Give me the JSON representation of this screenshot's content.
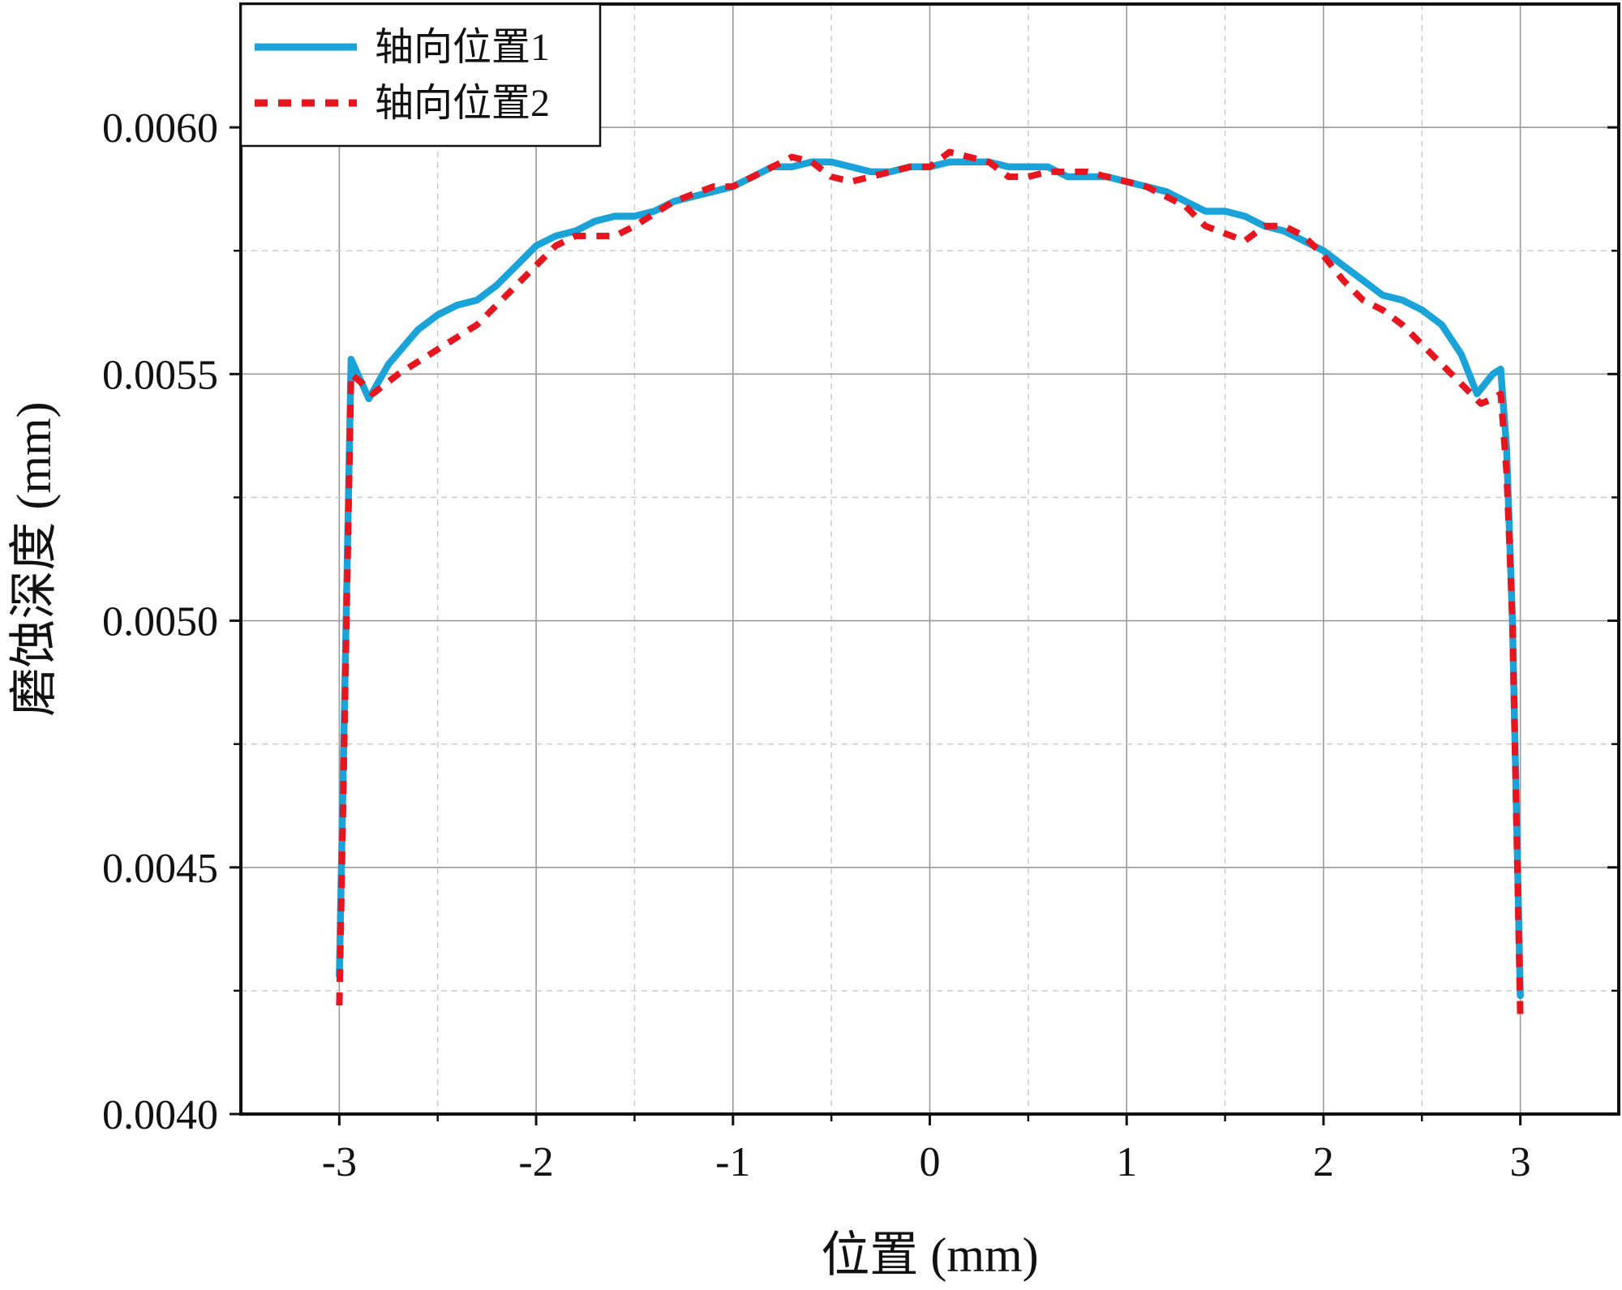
{
  "chart_data": {
    "type": "line",
    "title": "",
    "xlabel": "位置 (mm)",
    "ylabel": "磨蚀深度 (mm)",
    "xlim": [
      -3.5,
      3.5
    ],
    "ylim": [
      0.004,
      0.00625
    ],
    "x_ticks": [
      -3,
      -2,
      -1,
      0,
      1,
      2,
      3
    ],
    "x_tick_labels": [
      "-3",
      "-2",
      "-1",
      "0",
      "1",
      "2",
      "3"
    ],
    "y_ticks": [
      0.004,
      0.0045,
      0.005,
      0.0055,
      0.006
    ],
    "y_tick_labels": [
      "0.0040",
      "0.0045",
      "0.0050",
      "0.0055",
      "0.0060"
    ],
    "grid": {
      "major": true,
      "minor": true
    },
    "legend_position": "top-left",
    "series": [
      {
        "name": "轴向位置1",
        "color": "#1aa3d9",
        "style": "solid",
        "points": [
          [
            -3.0,
            0.00428
          ],
          [
            -2.94,
            0.00553
          ],
          [
            -2.85,
            0.00545
          ],
          [
            -2.75,
            0.00552
          ],
          [
            -2.6,
            0.00559
          ],
          [
            -2.5,
            0.00562
          ],
          [
            -2.4,
            0.00564
          ],
          [
            -2.3,
            0.00565
          ],
          [
            -2.2,
            0.00568
          ],
          [
            -2.1,
            0.00572
          ],
          [
            -2.0,
            0.00576
          ],
          [
            -1.9,
            0.00578
          ],
          [
            -1.8,
            0.00579
          ],
          [
            -1.7,
            0.00581
          ],
          [
            -1.6,
            0.00582
          ],
          [
            -1.5,
            0.00582
          ],
          [
            -1.4,
            0.00583
          ],
          [
            -1.3,
            0.00585
          ],
          [
            -1.2,
            0.00586
          ],
          [
            -1.1,
            0.00587
          ],
          [
            -1.0,
            0.00588
          ],
          [
            -0.9,
            0.0059
          ],
          [
            -0.8,
            0.00592
          ],
          [
            -0.7,
            0.00592
          ],
          [
            -0.6,
            0.00593
          ],
          [
            -0.5,
            0.00593
          ],
          [
            -0.4,
            0.00592
          ],
          [
            -0.3,
            0.00591
          ],
          [
            -0.2,
            0.00591
          ],
          [
            -0.1,
            0.00592
          ],
          [
            0.0,
            0.00592
          ],
          [
            0.1,
            0.00593
          ],
          [
            0.2,
            0.00593
          ],
          [
            0.3,
            0.00593
          ],
          [
            0.4,
            0.00592
          ],
          [
            0.5,
            0.00592
          ],
          [
            0.6,
            0.00592
          ],
          [
            0.7,
            0.0059
          ],
          [
            0.8,
            0.0059
          ],
          [
            0.9,
            0.0059
          ],
          [
            1.0,
            0.00589
          ],
          [
            1.1,
            0.00588
          ],
          [
            1.2,
            0.00587
          ],
          [
            1.3,
            0.00585
          ],
          [
            1.4,
            0.00583
          ],
          [
            1.5,
            0.00583
          ],
          [
            1.6,
            0.00582
          ],
          [
            1.7,
            0.0058
          ],
          [
            1.8,
            0.00579
          ],
          [
            1.9,
            0.00577
          ],
          [
            2.0,
            0.00575
          ],
          [
            2.1,
            0.00572
          ],
          [
            2.2,
            0.00569
          ],
          [
            2.3,
            0.00566
          ],
          [
            2.4,
            0.00565
          ],
          [
            2.5,
            0.00563
          ],
          [
            2.6,
            0.0056
          ],
          [
            2.7,
            0.00554
          ],
          [
            2.78,
            0.00546
          ],
          [
            2.86,
            0.0055
          ],
          [
            2.9,
            0.00551
          ],
          [
            2.93,
            0.00535
          ],
          [
            2.96,
            0.005
          ],
          [
            3.0,
            0.00424
          ]
        ]
      },
      {
        "name": "轴向位置2",
        "color": "#e8141e",
        "style": "dashed",
        "points": [
          [
            -3.0,
            0.00422
          ],
          [
            -2.94,
            0.0055
          ],
          [
            -2.88,
            0.00548
          ],
          [
            -2.83,
            0.00546
          ],
          [
            -2.7,
            0.0055
          ],
          [
            -2.5,
            0.00555
          ],
          [
            -2.3,
            0.0056
          ],
          [
            -2.1,
            0.00568
          ],
          [
            -1.9,
            0.00576
          ],
          [
            -1.8,
            0.00578
          ],
          [
            -1.6,
            0.00578
          ],
          [
            -1.5,
            0.0058
          ],
          [
            -1.3,
            0.00585
          ],
          [
            -1.1,
            0.00588
          ],
          [
            -1.0,
            0.00588
          ],
          [
            -0.9,
            0.0059
          ],
          [
            -0.8,
            0.00592
          ],
          [
            -0.7,
            0.00594
          ],
          [
            -0.6,
            0.00593
          ],
          [
            -0.5,
            0.0059
          ],
          [
            -0.4,
            0.00589
          ],
          [
            -0.3,
            0.0059
          ],
          [
            -0.2,
            0.00591
          ],
          [
            -0.1,
            0.00592
          ],
          [
            0.0,
            0.00592
          ],
          [
            0.1,
            0.00595
          ],
          [
            0.2,
            0.00594
          ],
          [
            0.3,
            0.00593
          ],
          [
            0.4,
            0.0059
          ],
          [
            0.5,
            0.0059
          ],
          [
            0.6,
            0.00591
          ],
          [
            0.7,
            0.00591
          ],
          [
            0.8,
            0.00591
          ],
          [
            0.9,
            0.0059
          ],
          [
            1.0,
            0.00589
          ],
          [
            1.1,
            0.00588
          ],
          [
            1.2,
            0.00586
          ],
          [
            1.3,
            0.00584
          ],
          [
            1.4,
            0.0058
          ],
          [
            1.6,
            0.00577
          ],
          [
            1.7,
            0.0058
          ],
          [
            1.8,
            0.0058
          ],
          [
            1.9,
            0.00578
          ],
          [
            2.0,
            0.00574
          ],
          [
            2.1,
            0.00569
          ],
          [
            2.2,
            0.00565
          ],
          [
            2.3,
            0.00563
          ],
          [
            2.4,
            0.0056
          ],
          [
            2.5,
            0.00556
          ],
          [
            2.6,
            0.00552
          ],
          [
            2.7,
            0.00548
          ],
          [
            2.8,
            0.00544
          ],
          [
            2.86,
            0.00545
          ],
          [
            2.9,
            0.00546
          ],
          [
            2.93,
            0.0053
          ],
          [
            2.96,
            0.005
          ],
          [
            3.0,
            0.0042
          ]
        ]
      }
    ]
  }
}
